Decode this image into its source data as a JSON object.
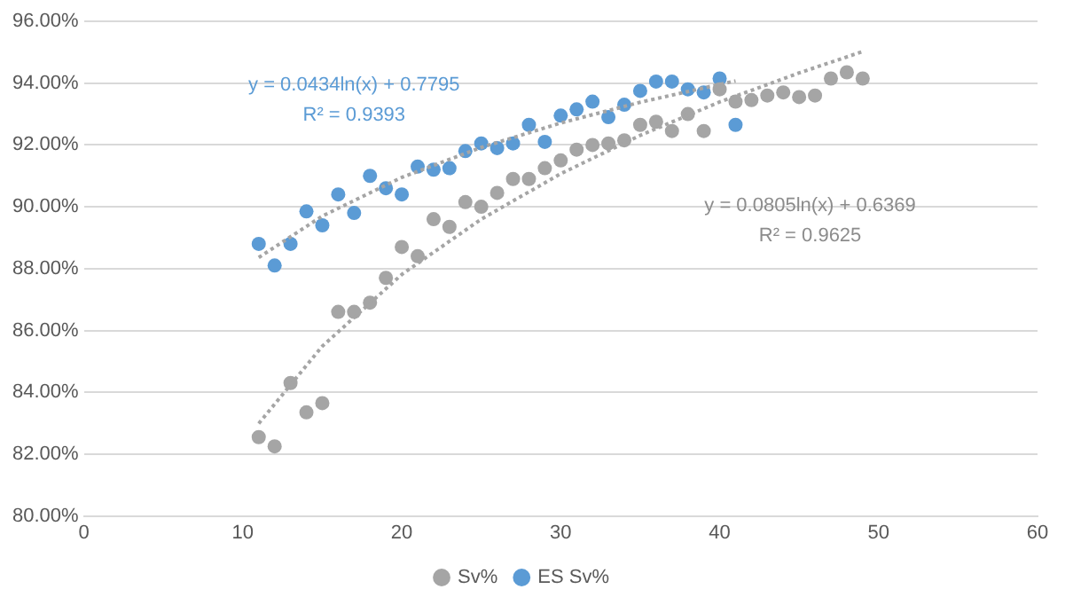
{
  "chart_data": {
    "type": "scatter",
    "xlim": [
      0,
      60
    ],
    "xticks": [
      0,
      10,
      20,
      30,
      40,
      50,
      60
    ],
    "ylim": [
      80,
      96
    ],
    "yticks": [
      {
        "value": 80,
        "label": "80.00%"
      },
      {
        "value": 82,
        "label": "82.00%"
      },
      {
        "value": 84,
        "label": "84.00%"
      },
      {
        "value": 86,
        "label": "86.00%"
      },
      {
        "value": 88,
        "label": "88.00%"
      },
      {
        "value": 90,
        "label": "90.00%"
      },
      {
        "value": 92,
        "label": "92.00%"
      },
      {
        "value": 94,
        "label": "94.00%"
      },
      {
        "value": 96,
        "label": "96.00%"
      }
    ],
    "grid": "y",
    "legend": "bottom",
    "marker": "circle",
    "annotations": [
      "y = 0.0434ln(x) + 0.7795",
      "R² = 0.9393",
      "y = 0.0805ln(x) + 0.6369",
      "R² = 0.9625"
    ],
    "series": [
      {
        "name": "Sv%",
        "color": "#a5a5a5",
        "x": [
          11,
          12,
          13,
          14,
          15,
          16,
          17,
          18,
          19,
          20,
          21,
          22,
          23,
          24,
          25,
          26,
          27,
          28,
          29,
          30,
          31,
          32,
          33,
          34,
          35,
          36,
          37,
          38,
          39,
          40,
          41,
          42,
          43,
          44,
          45,
          46,
          47,
          48,
          49
        ],
        "values": [
          82.55,
          82.25,
          84.3,
          83.35,
          83.65,
          86.6,
          86.6,
          86.9,
          87.7,
          88.7,
          88.4,
          89.6,
          89.35,
          90.15,
          90.0,
          90.45,
          90.9,
          90.9,
          91.25,
          91.5,
          91.85,
          92.0,
          92.05,
          92.15,
          92.65,
          92.75,
          92.45,
          93.0,
          92.45,
          93.8,
          93.4,
          93.45,
          93.6,
          93.7,
          93.55,
          93.6,
          94.15,
          94.35,
          94.15
        ]
      },
      {
        "name": "ES Sv%",
        "color": "#5b9bd5",
        "x": [
          11,
          12,
          13,
          14,
          15,
          16,
          17,
          18,
          19,
          20,
          21,
          22,
          23,
          24,
          25,
          26,
          27,
          28,
          29,
          30,
          31,
          32,
          33,
          34,
          35,
          36,
          37,
          38,
          39,
          40,
          41
        ],
        "values": [
          88.8,
          88.1,
          88.8,
          89.85,
          89.4,
          90.4,
          89.8,
          91.0,
          90.6,
          90.4,
          91.3,
          91.2,
          91.25,
          91.8,
          92.05,
          91.9,
          92.05,
          92.65,
          92.1,
          92.95,
          93.15,
          93.4,
          92.9,
          93.3,
          93.75,
          94.05,
          94.05,
          93.8,
          93.7,
          94.15,
          92.65
        ]
      },
      {
        "type": "line",
        "line_style": "dotted",
        "marker": "none",
        "color": "#a5a5a5",
        "x": [
          11,
          15,
          20,
          25,
          30,
          35,
          40,
          45,
          49
        ],
        "values": [
          82.99,
          85.49,
          87.81,
          89.6,
          91.07,
          92.31,
          93.39,
          94.33,
          95.02
        ]
      },
      {
        "type": "line",
        "line_style": "dotted",
        "marker": "none",
        "color": "#a5a5a5",
        "x": [
          11,
          15,
          20,
          25,
          30,
          35,
          40,
          41
        ],
        "values": [
          88.36,
          89.7,
          90.95,
          91.92,
          92.71,
          93.38,
          93.96,
          94.07
        ]
      }
    ]
  }
}
